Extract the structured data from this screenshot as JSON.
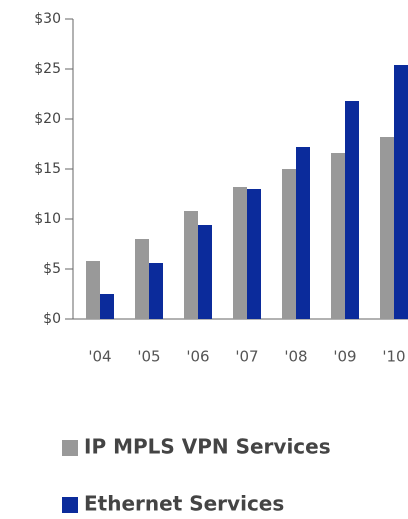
{
  "chart_data": {
    "type": "bar",
    "categories": [
      "'04",
      "'05",
      "'06",
      "'07",
      "'08",
      "'09",
      "'10"
    ],
    "series": [
      {
        "name": "IP MPLS VPN Services",
        "color": "#999999",
        "values": [
          5.8,
          8.0,
          10.8,
          13.2,
          15.0,
          16.6,
          18.2
        ]
      },
      {
        "name": "Ethernet Services",
        "color": "#0b2b9b",
        "values": [
          2.5,
          5.6,
          9.4,
          13.0,
          17.2,
          21.8,
          25.4
        ]
      }
    ],
    "ylim": [
      0,
      30
    ],
    "yticks": [
      {
        "value": 0,
        "label": "$0"
      },
      {
        "value": 5,
        "label": "$5"
      },
      {
        "value": 10,
        "label": "$10"
      },
      {
        "value": 15,
        "label": "$15"
      },
      {
        "value": 20,
        "label": "$20"
      },
      {
        "value": 25,
        "label": "$25"
      },
      {
        "value": 30,
        "label": "$30"
      }
    ],
    "legend": "bottom"
  }
}
